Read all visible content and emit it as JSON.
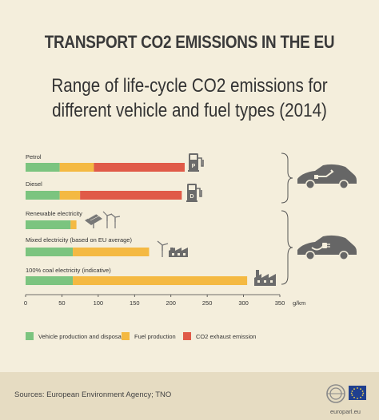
{
  "header": {
    "title": "TRANSPORT CO2 EMISSIONS IN THE EU",
    "subtitle_line1": "Range of life-cycle CO2 emissions for",
    "subtitle_line2": "different vehicle and fuel types (2014)"
  },
  "colors": {
    "vehicle_production": "#7bc47f",
    "fuel_production": "#f4b942",
    "exhaust": "#e05a48",
    "background": "#f4eedc",
    "footer": "#e6dcc2",
    "text": "#3a3a3a"
  },
  "icons": [
    "fuel-pump-p-icon",
    "fuel-pump-d-icon",
    "solar-wind-icon",
    "wind-factory-icon",
    "factory-icon",
    "combustion-car-icon",
    "electric-car-icon"
  ],
  "chart_data": {
    "type": "bar",
    "orientation": "horizontal",
    "stacked": true,
    "categories": [
      "Petrol",
      "Diesel",
      "Renewable electricity",
      "Mixed electricity (based on EU average)",
      "100% coal electricity (indicative)"
    ],
    "series": [
      {
        "name": "Vehicle production and disposal",
        "values": [
          47,
          47,
          62,
          65,
          65
        ]
      },
      {
        "name": "Fuel production",
        "values": [
          47,
          28,
          8,
          105,
          240
        ]
      },
      {
        "name": "CO2 exhaust emission",
        "values": [
          125,
          140,
          0,
          0,
          0
        ]
      }
    ],
    "xlim": [
      0,
      350
    ],
    "xticks": [
      "0",
      "50",
      "100",
      "150",
      "200",
      "250",
      "300",
      "350"
    ],
    "xunit": "g/km",
    "legend_position": "bottom"
  },
  "source": "Sources: European Environment Agency; TNO",
  "footer_url": "europarl.eu"
}
